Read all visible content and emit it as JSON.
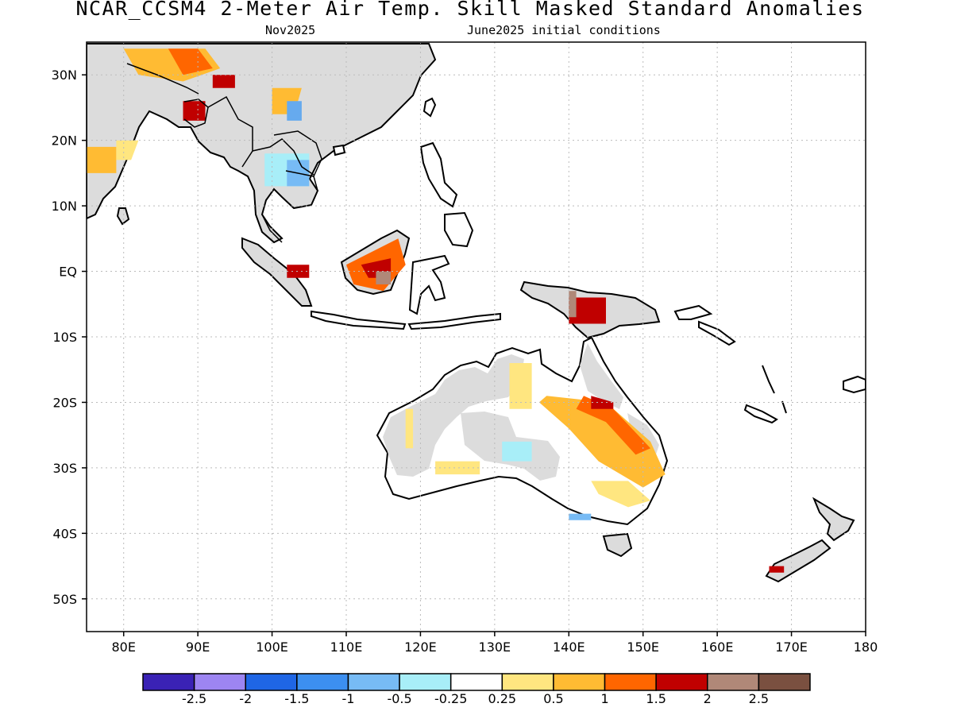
{
  "title": "NCAR_CCSM4 2-Meter Air Temp. Skill Masked Standard Anomalies",
  "subtitle_left": "Nov2025",
  "subtitle_right": "June2025 initial conditions",
  "map": {
    "lon_range": [
      75,
      180
    ],
    "lat_range": [
      -55,
      35
    ],
    "lat_ticks": [
      {
        "value": 30,
        "label": "30N"
      },
      {
        "value": 20,
        "label": "20N"
      },
      {
        "value": 10,
        "label": "10N"
      },
      {
        "value": 0,
        "label": "EQ"
      },
      {
        "value": -10,
        "label": "10S"
      },
      {
        "value": -20,
        "label": "20S"
      },
      {
        "value": -30,
        "label": "30S"
      },
      {
        "value": -40,
        "label": "40S"
      },
      {
        "value": -50,
        "label": "50S"
      }
    ],
    "lon_ticks": [
      {
        "value": 80,
        "label": "80E"
      },
      {
        "value": 90,
        "label": "90E"
      },
      {
        "value": 100,
        "label": "100E"
      },
      {
        "value": 110,
        "label": "110E"
      },
      {
        "value": 120,
        "label": "120E"
      },
      {
        "value": 130,
        "label": "130E"
      },
      {
        "value": 140,
        "label": "140E"
      },
      {
        "value": 150,
        "label": "150E"
      },
      {
        "value": 160,
        "label": "160E"
      },
      {
        "value": 170,
        "label": "170E"
      },
      {
        "value": 180,
        "label": "180"
      }
    ],
    "grid": true,
    "masked_color": "#dcdcdc",
    "anomaly_regions": [
      {
        "name": "north-india-warm",
        "color": "#ffbb33",
        "points": [
          [
            80,
            34
          ],
          [
            91,
            34
          ],
          [
            93,
            31
          ],
          [
            88,
            29
          ],
          [
            82,
            30
          ]
        ]
      },
      {
        "name": "himalaya-strong-warm",
        "color": "#ff6600",
        "points": [
          [
            86,
            34
          ],
          [
            90,
            34
          ],
          [
            92,
            31
          ],
          [
            88,
            30
          ]
        ]
      },
      {
        "name": "bangladesh-very-warm",
        "color": "#c00000",
        "points": [
          [
            88,
            26
          ],
          [
            91,
            26
          ],
          [
            91,
            23
          ],
          [
            88,
            23
          ]
        ]
      },
      {
        "name": "tibet-very-warm",
        "color": "#c00000",
        "points": [
          [
            92,
            30
          ],
          [
            95,
            30
          ],
          [
            95,
            28
          ],
          [
            92,
            28
          ]
        ]
      },
      {
        "name": "east-india-warm",
        "color": "#ffbb33",
        "points": [
          [
            75,
            19
          ],
          [
            79,
            19
          ],
          [
            79,
            15
          ],
          [
            75,
            15
          ]
        ]
      },
      {
        "name": "east-india-light-warm",
        "color": "#ffe680",
        "points": [
          [
            79,
            20
          ],
          [
            82,
            20
          ],
          [
            81,
            17
          ],
          [
            79,
            17
          ]
        ]
      },
      {
        "name": "yunnan-warm",
        "color": "#ffbb33",
        "points": [
          [
            100,
            28
          ],
          [
            104,
            28
          ],
          [
            103,
            24
          ],
          [
            100,
            24
          ]
        ]
      },
      {
        "name": "south-china-cool",
        "color": "#66aaee",
        "points": [
          [
            102,
            26
          ],
          [
            104,
            26
          ],
          [
            104,
            23
          ],
          [
            102,
            23
          ]
        ]
      },
      {
        "name": "indochina-cool",
        "color": "#a8eef8",
        "points": [
          [
            99,
            18
          ],
          [
            105,
            18
          ],
          [
            105,
            13
          ],
          [
            99,
            13
          ]
        ]
      },
      {
        "name": "indochina-cooler",
        "color": "#77bbf5",
        "points": [
          [
            102,
            17
          ],
          [
            105,
            17
          ],
          [
            105,
            13
          ],
          [
            102,
            13
          ]
        ]
      },
      {
        "name": "borneo-warm",
        "color": "#ff6600",
        "points": [
          [
            110,
            1
          ],
          [
            117,
            5
          ],
          [
            118,
            1
          ],
          [
            115,
            -3
          ],
          [
            111,
            -2
          ]
        ]
      },
      {
        "name": "borneo-very-warm",
        "color": "#c00000",
        "points": [
          [
            112,
            1
          ],
          [
            116,
            2
          ],
          [
            116,
            -1
          ],
          [
            113,
            -1
          ]
        ]
      },
      {
        "name": "borneo-core",
        "color": "#b08878",
        "points": [
          [
            114,
            0
          ],
          [
            116,
            0
          ],
          [
            116,
            -2
          ],
          [
            114,
            -2
          ]
        ]
      },
      {
        "name": "sumatra-very-warm",
        "color": "#c00000",
        "points": [
          [
            102,
            1
          ],
          [
            105,
            1
          ],
          [
            105,
            -1
          ],
          [
            102,
            -1
          ]
        ]
      },
      {
        "name": "new-guinea-very-warm",
        "color": "#c00000",
        "points": [
          [
            140,
            -4
          ],
          [
            145,
            -4
          ],
          [
            145,
            -8
          ],
          [
            140,
            -8
          ]
        ]
      },
      {
        "name": "new-guinea-brown",
        "color": "#b08878",
        "points": [
          [
            140,
            -3
          ],
          [
            141,
            -3
          ],
          [
            141,
            -7
          ],
          [
            140,
            -7
          ]
        ]
      },
      {
        "name": "queensland-warm",
        "color": "#ffbb33",
        "points": [
          [
            137,
            -19
          ],
          [
            145,
            -20
          ],
          [
            151,
            -26
          ],
          [
            153,
            -31
          ],
          [
            150,
            -33
          ],
          [
            144,
            -29
          ],
          [
            140,
            -24
          ],
          [
            136,
            -20
          ]
        ]
      },
      {
        "name": "queensland-strong-warm",
        "color": "#ff6600",
        "points": [
          [
            142,
            -19
          ],
          [
            146,
            -21
          ],
          [
            151,
            -27
          ],
          [
            149,
            -28
          ],
          [
            145,
            -23
          ],
          [
            141,
            -21
          ]
        ]
      },
      {
        "name": "queensland-very-warm",
        "color": "#c00000",
        "points": [
          [
            143,
            -19
          ],
          [
            146,
            -20
          ],
          [
            146,
            -21
          ],
          [
            143,
            -21
          ]
        ]
      },
      {
        "name": "nsw-light-warm",
        "color": "#ffe680",
        "points": [
          [
            143,
            -32
          ],
          [
            148,
            -32
          ],
          [
            151,
            -35
          ],
          [
            148,
            -36
          ],
          [
            144,
            -34
          ]
        ]
      },
      {
        "name": "sa-light-warm",
        "color": "#ffe680",
        "points": [
          [
            122,
            -29
          ],
          [
            128,
            -29
          ],
          [
            128,
            -31
          ],
          [
            122,
            -31
          ]
        ]
      },
      {
        "name": "gulf-light-warm",
        "color": "#ffe680",
        "points": [
          [
            132,
            -14
          ],
          [
            135,
            -14
          ],
          [
            135,
            -21
          ],
          [
            132,
            -21
          ]
        ]
      },
      {
        "name": "wa-light-warm",
        "color": "#ffe680",
        "points": [
          [
            118,
            -21
          ],
          [
            119,
            -21
          ],
          [
            119,
            -27
          ],
          [
            118,
            -27
          ]
        ]
      },
      {
        "name": "central-australia-cool",
        "color": "#a8eef8",
        "points": [
          [
            131,
            -26
          ],
          [
            135,
            -26
          ],
          [
            135,
            -29
          ],
          [
            131,
            -29
          ]
        ]
      },
      {
        "name": "victoria-cool",
        "color": "#77bbf5",
        "points": [
          [
            140,
            -37
          ],
          [
            143,
            -37
          ],
          [
            143,
            -38
          ],
          [
            140,
            -38
          ]
        ]
      },
      {
        "name": "new-zealand-very-warm",
        "color": "#c00000",
        "points": [
          [
            167,
            -45
          ],
          [
            169,
            -45
          ],
          [
            169,
            -46
          ],
          [
            167,
            -46
          ]
        ]
      }
    ]
  },
  "colorbar": {
    "colors": [
      "#3a22b5",
      "#9d85f2",
      "#1f66e5",
      "#3c8ff0",
      "#77bbf5",
      "#a8eef8",
      "#ffffff",
      "#ffe680",
      "#ffbb33",
      "#ff6600",
      "#c00000",
      "#b08878",
      "#7a5040"
    ],
    "labels": [
      "-2.5",
      "-2",
      "-1.5",
      "-1",
      "-0.5",
      "-0.25",
      "0.25",
      "0.5",
      "1",
      "1.5",
      "2",
      "2.5"
    ]
  }
}
